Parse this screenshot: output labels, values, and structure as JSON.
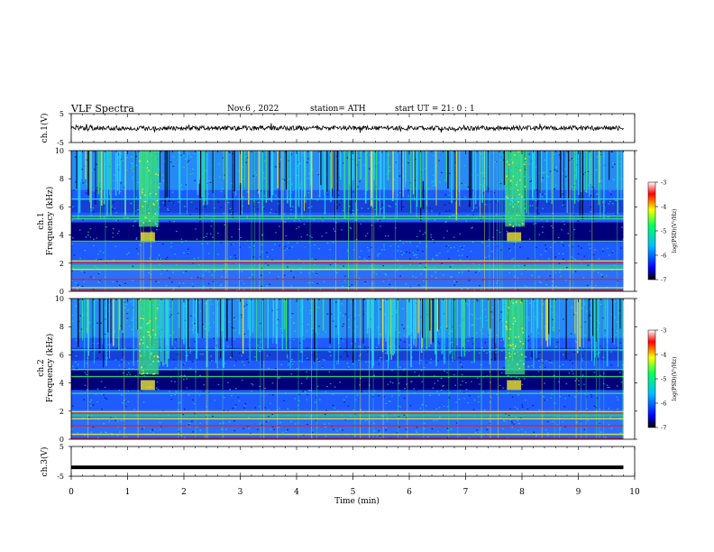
{
  "header": {
    "title": "VLF  Spectra",
    "date": "Nov.6  , 2022",
    "station": "station= ATH",
    "start": "start  UT  =    21: 0   : 1"
  },
  "colorbar": {
    "label": "log(PSD)(V²/Hz)",
    "ticks": [
      "-3",
      "-4",
      "-5",
      "-6",
      "-7"
    ]
  },
  "colors": {
    "background_dark": "#00007a",
    "noise_blue": "#1e5cff",
    "cyan": "#22d8f0",
    "green": "#38e070",
    "yellow": "#f0e62a",
    "red": "#e02020",
    "colorbar_stops": [
      "#000000",
      "#0000ff",
      "#00c0ff",
      "#00ff60",
      "#ffff00",
      "#ff0000",
      "#ffffff"
    ]
  },
  "chart_data": [
    {
      "type": "line",
      "panel": "ch1-waveform",
      "ylabel": "ch.1(V)",
      "ylim": [
        -5,
        5
      ],
      "y_ticks": [
        "5",
        "-5"
      ],
      "x": [
        0,
        1,
        2,
        3,
        4,
        5,
        6,
        7,
        8,
        9,
        9.8
      ],
      "y": [
        0,
        0,
        0,
        0,
        0,
        0,
        0,
        0,
        0,
        0,
        0
      ]
    },
    {
      "type": "heatmap",
      "panel": "ch1-spectrogram",
      "ylabel_line1": "ch.1",
      "ylabel_line2": "Frequency  (kHz)",
      "ylim": [
        0,
        10
      ],
      "y_ticks": [
        "10",
        "8",
        "6",
        "4",
        "2",
        "0"
      ],
      "x_range_min": [
        0,
        9.8
      ],
      "bursts_min": [
        [
          1.2,
          1.55
        ],
        [
          7.7,
          8.05
        ]
      ],
      "tones_khz": [
        6.6,
        5.4,
        5.2,
        3.6,
        2.2,
        2.1,
        1.6,
        0.9,
        0.3
      ]
    },
    {
      "type": "heatmap",
      "panel": "ch2-spectrogram",
      "ylabel_line1": "ch.2",
      "ylabel_line2": "Frequency  (kHz)",
      "ylim": [
        0,
        10
      ],
      "y_ticks": [
        "10",
        "8",
        "6",
        "4",
        "2",
        "0"
      ],
      "x_range_min": [
        0,
        9.8
      ],
      "bursts_min": [
        [
          1.2,
          1.55
        ],
        [
          7.7,
          8.05
        ]
      ],
      "tones_khz": [
        6.4,
        5.0,
        4.5,
        3.3,
        2.0,
        1.9,
        1.5,
        1.0,
        0.4
      ]
    },
    {
      "type": "line",
      "panel": "ch3-waveform",
      "ylabel": "ch.3(V)",
      "ylim": [
        -5,
        5
      ],
      "y_ticks": [
        "5",
        "-5"
      ],
      "x": [
        0,
        9.8
      ],
      "y": [
        -2,
        -2
      ]
    }
  ],
  "xaxis": {
    "label": "Time  (min)",
    "ticks": [
      "0",
      "1",
      "2",
      "3",
      "4",
      "5",
      "6",
      "7",
      "8",
      "9",
      "10"
    ],
    "xlim": [
      0,
      10
    ]
  }
}
